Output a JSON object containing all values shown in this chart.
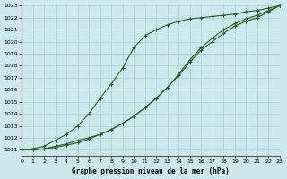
{
  "xlabel": "Graphe pression niveau de la mer (hPa)",
  "ylim": [
    1011,
    1023
  ],
  "xlim": [
    0,
    23
  ],
  "yticks": [
    1011,
    1012,
    1013,
    1014,
    1015,
    1016,
    1017,
    1018,
    1019,
    1020,
    1021,
    1022,
    1023
  ],
  "xticks": [
    0,
    1,
    2,
    3,
    4,
    5,
    6,
    7,
    8,
    9,
    10,
    11,
    12,
    13,
    14,
    15,
    16,
    17,
    18,
    19,
    20,
    21,
    22,
    23
  ],
  "bg_color": "#cce8ec",
  "grid_color": "#aacfd4",
  "line_color": "#2d5a27",
  "line1_y": [
    1011.0,
    1011.1,
    1011.3,
    1011.8,
    1012.3,
    1013.0,
    1014.0,
    1015.3,
    1016.5,
    1017.8,
    1019.5,
    1020.5,
    1021.0,
    1021.4,
    1021.7,
    1021.9,
    1022.0,
    1022.1,
    1022.2,
    1022.3,
    1022.5,
    1022.6,
    1022.8,
    1023.0
  ],
  "line2_y": [
    1011.0,
    1011.0,
    1011.1,
    1011.3,
    1011.5,
    1011.8,
    1012.0,
    1012.3,
    1012.7,
    1013.2,
    1013.8,
    1014.5,
    1015.3,
    1016.2,
    1017.2,
    1018.3,
    1019.3,
    1020.0,
    1020.7,
    1021.3,
    1021.7,
    1022.0,
    1022.5,
    1023.0
  ],
  "line3_y": [
    1011.0,
    1011.0,
    1011.1,
    1011.2,
    1011.4,
    1011.6,
    1011.9,
    1012.3,
    1012.7,
    1013.2,
    1013.8,
    1014.5,
    1015.3,
    1016.2,
    1017.3,
    1018.5,
    1019.5,
    1020.3,
    1021.0,
    1021.5,
    1021.9,
    1022.2,
    1022.6,
    1023.0
  ],
  "x": [
    0,
    1,
    2,
    3,
    4,
    5,
    6,
    7,
    8,
    9,
    10,
    11,
    12,
    13,
    14,
    15,
    16,
    17,
    18,
    19,
    20,
    21,
    22,
    23
  ]
}
